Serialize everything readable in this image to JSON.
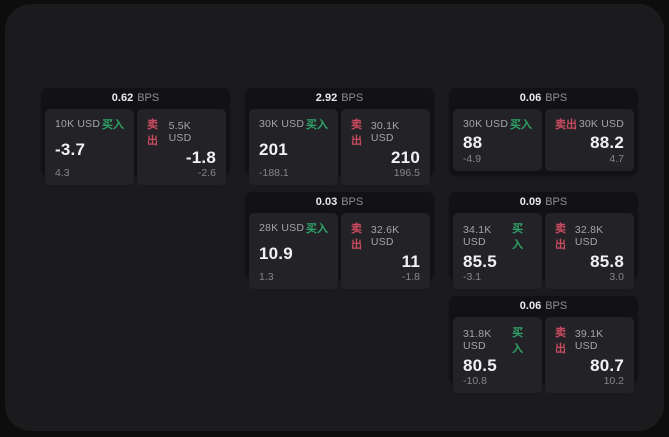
{
  "app": {
    "bps_unit_label": "BPS",
    "buy_side_label": "买入",
    "sell_side_label": "卖出"
  },
  "colors": {
    "outer_background": "#0d0d0e",
    "panel_background": "#1b1b1d",
    "card_background": "#121214",
    "tile_background": "#232327",
    "buy_green": "#2fa368",
    "sell_red": "#c94b5f",
    "value_text": "#f1f1f3",
    "label_text": "#a4a4a8",
    "sub_text": "#86868a"
  },
  "cards": [
    {
      "bps": "0.62",
      "buy": {
        "amount": "10K USD",
        "value": "-3.7",
        "sub": "4.3"
      },
      "sell": {
        "amount": "5.5K USD",
        "value": "-1.8",
        "sub": "-2.6"
      }
    },
    {
      "bps": "2.92",
      "buy": {
        "amount": "30K USD",
        "value": "201",
        "sub": "-188.1"
      },
      "sell": {
        "amount": "30.1K USD",
        "value": "210",
        "sub": "196.5"
      }
    },
    {
      "bps": "0.06",
      "buy": {
        "amount": "30K USD",
        "value": "88",
        "sub": "-4.9"
      },
      "sell": {
        "amount": "30K USD",
        "value": "88.2",
        "sub": "4.7"
      }
    },
    {
      "bps": "0.03",
      "buy": {
        "amount": "28K USD",
        "value": "10.9",
        "sub": "1.3"
      },
      "sell": {
        "amount": "32.6K USD",
        "value": "11",
        "sub": "-1.8"
      }
    },
    {
      "bps": "0.09",
      "buy": {
        "amount": "34.1K USD",
        "value": "85.5",
        "sub": "-3.1"
      },
      "sell": {
        "amount": "32.8K USD",
        "value": "85.8",
        "sub": "3.0"
      }
    },
    {
      "bps": "0.06",
      "buy": {
        "amount": "31.8K USD",
        "value": "80.5",
        "sub": "-10.8"
      },
      "sell": {
        "amount": "39.1K USD",
        "value": "80.7",
        "sub": "10.2"
      }
    }
  ]
}
